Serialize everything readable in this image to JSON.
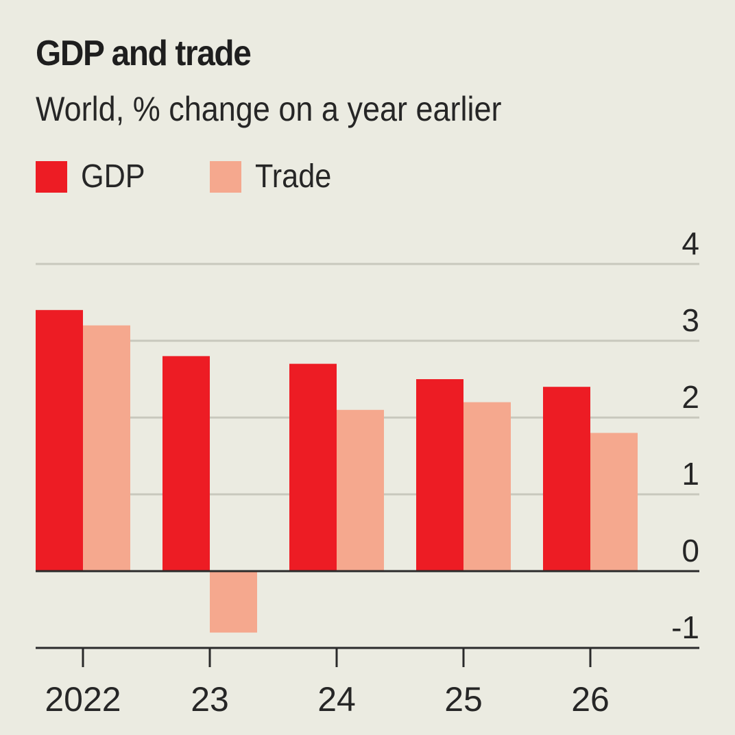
{
  "header": {
    "title": "GDP and trade",
    "subtitle": "World, % change on a year earlier"
  },
  "legend": [
    {
      "label": "GDP",
      "color": "#ed1c24"
    },
    {
      "label": "Trade",
      "color": "#f5a88e"
    }
  ],
  "colors": {
    "background": "#ebebe1",
    "gridline": "#c8c8bd",
    "axis": "#2a2a2a",
    "gdp": "#ed1c24",
    "trade": "#f5a88e"
  },
  "chart_data": {
    "type": "bar",
    "title": "GDP and trade",
    "subtitle": "World, % change on a year earlier",
    "xlabel": "",
    "ylabel": "",
    "categories": [
      "2022",
      "23",
      "24",
      "25",
      "26"
    ],
    "series": [
      {
        "name": "GDP",
        "values": [
          3.4,
          2.8,
          2.7,
          2.5,
          2.4
        ]
      },
      {
        "name": "Trade",
        "values": [
          3.2,
          -0.8,
          2.1,
          2.2,
          1.8
        ]
      }
    ],
    "ylim": [
      -1,
      4
    ],
    "yticks": [
      4,
      3,
      2,
      1,
      0,
      -1
    ],
    "grid": true,
    "y_axis_side": "right",
    "legend_position": "top-left"
  }
}
